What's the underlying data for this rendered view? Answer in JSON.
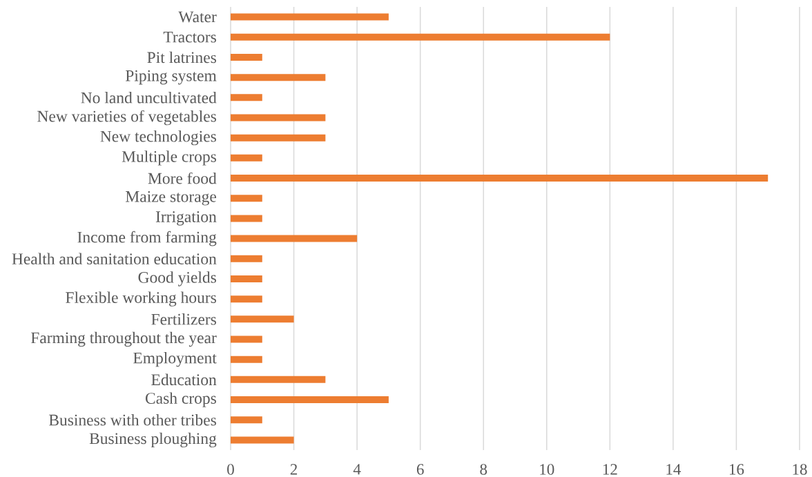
{
  "chart_data": {
    "type": "bar",
    "orientation": "horizontal",
    "categories": [
      "Water",
      "Tractors",
      "Pit latrines",
      "Piping system",
      "No land uncultivated",
      "New varieties of vegetables",
      "New technologies",
      "Multiple crops",
      "More food",
      "Maize storage",
      "Irrigation",
      "Income from farming",
      "Health and sanitation education",
      "Good yields",
      "Flexible working hours",
      "Fertilizers",
      "Farming throughout the year",
      "Employment",
      "Education",
      "Cash crops",
      "Business with other tribes",
      "Business ploughing"
    ],
    "values": [
      5,
      12,
      1,
      3,
      1,
      3,
      3,
      1,
      17,
      1,
      1,
      4,
      1,
      1,
      1,
      2,
      1,
      1,
      3,
      5,
      1,
      2
    ],
    "color": "#ed7d31",
    "xlim": [
      0,
      18
    ],
    "xticks": [
      0,
      2,
      4,
      6,
      8,
      10,
      12,
      14,
      16,
      18
    ],
    "grid": "x"
  }
}
